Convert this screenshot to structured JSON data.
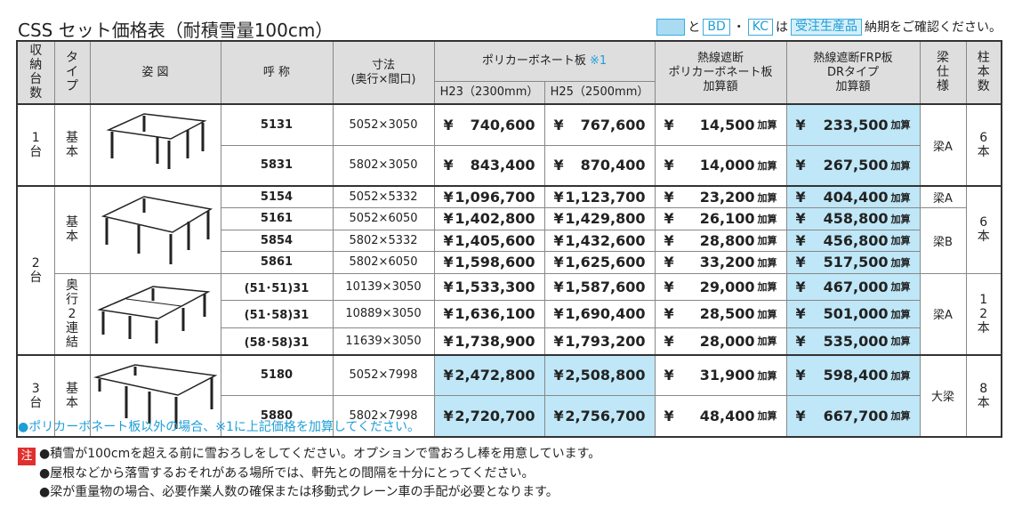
{
  "header": {
    "title": "CSS セット価格表（耐積雪量100cm）",
    "legend": {
      "and": "と",
      "bd": "BD",
      "dot": "・",
      "kc": "KC",
      "ha": "は",
      "made_to_order": "受注生産品",
      "note": "納期をご確認ください。"
    }
  },
  "table": {
    "columns": {
      "count": "収納台数",
      "type": "タイプ",
      "drawing": "姿 図",
      "name": "呼 称",
      "size": "寸法",
      "size_sub": "(奥行×間口)",
      "poly": "ポリカーボネート板",
      "poly_note": "※1",
      "h23": "H23（2300mm）",
      "h25": "H25（2500mm）",
      "heat": [
        "熱線遮断",
        "ポリカーボネート板",
        "加算額"
      ],
      "frp": [
        "熱線遮断FRP板",
        "DRタイプ",
        "加算額"
      ],
      "beam": "梁仕様",
      "pillars": "柱本数"
    },
    "currency": "¥",
    "surcharge": "加算",
    "groups": [
      {
        "count": "1台",
        "subgroups": [
          {
            "type": "基本",
            "pillars": "6本",
            "beam_groups": [
              {
                "beam": "梁A",
                "rows": [
                  {
                    "name": "5131",
                    "size": "5052×3050",
                    "h23": "740,600",
                    "h25": "767,600",
                    "heat": "14,500",
                    "frp": "233,500"
                  },
                  {
                    "name": "5831",
                    "size": "5802×3050",
                    "h23": "843,400",
                    "h25": "870,400",
                    "heat": "14,000",
                    "frp": "267,500"
                  }
                ]
              }
            ]
          }
        ]
      },
      {
        "count": "2台",
        "subgroups": [
          {
            "type": "基本",
            "pillars": "6本",
            "beam_groups": [
              {
                "beam": "梁A",
                "rows": [
                  {
                    "name": "5154",
                    "size": "5052×5332",
                    "h23": "1,096,700",
                    "h25": "1,123,700",
                    "heat": "23,200",
                    "frp": "404,400"
                  }
                ]
              },
              {
                "beam": "梁B",
                "rows": [
                  {
                    "name": "5161",
                    "size": "5052×6050",
                    "h23": "1,402,800",
                    "h25": "1,429,800",
                    "heat": "26,100",
                    "frp": "458,800"
                  },
                  {
                    "name": "5854",
                    "size": "5802×5332",
                    "h23": "1,405,600",
                    "h25": "1,432,600",
                    "heat": "28,800",
                    "frp": "456,800"
                  },
                  {
                    "name": "5861",
                    "size": "5802×6050",
                    "h23": "1,598,600",
                    "h25": "1,625,600",
                    "heat": "33,200",
                    "frp": "517,500"
                  }
                ]
              }
            ]
          },
          {
            "type": "奥行2連結",
            "pillars": "12本",
            "beam_groups": [
              {
                "beam": "梁A",
                "rows": [
                  {
                    "name": "(51･51)31",
                    "size": "10139×3050",
                    "h23": "1,533,300",
                    "h25": "1,587,600",
                    "heat": "29,000",
                    "frp": "467,000"
                  },
                  {
                    "name": "(51･58)31",
                    "size": "10889×3050",
                    "h23": "1,636,100",
                    "h25": "1,690,400",
                    "heat": "28,500",
                    "frp": "501,000"
                  },
                  {
                    "name": "(58･58)31",
                    "size": "11639×3050",
                    "h23": "1,738,900",
                    "h25": "1,793,200",
                    "heat": "28,000",
                    "frp": "535,000"
                  }
                ]
              }
            ]
          }
        ]
      },
      {
        "count": "3台",
        "subgroups": [
          {
            "type": "基本",
            "pillars": "8本",
            "beam_groups": [
              {
                "beam": "大梁",
                "rows": [
                  {
                    "name": "5180",
                    "size": "5052×7998",
                    "h23": "2,472,800",
                    "h25": "2,508,800",
                    "heat": "31,900",
                    "frp": "598,400",
                    "made_to_order": true
                  },
                  {
                    "name": "5880",
                    "size": "5802×7998",
                    "h23": "2,720,700",
                    "h25": "2,756,700",
                    "heat": "48,400",
                    "frp": "667,700",
                    "made_to_order": true
                  }
                ]
              }
            ]
          }
        ]
      }
    ]
  },
  "notes": {
    "polycarbonate": "●ポリカーボネート板以外の場合、※1に上記価格を加算してください。",
    "label": "注",
    "items": [
      "●積雪が100cmを超える前に雪おろしをしてください。オプションで雪おろし棒を用意しています。",
      "●屋根などから落雪するおそれがある場所では、軒先との間隔を十分にとってください。",
      "●梁が重量物の場合、必要作業人数の確保または移動式クレーン車の手配が必要となります。"
    ]
  }
}
